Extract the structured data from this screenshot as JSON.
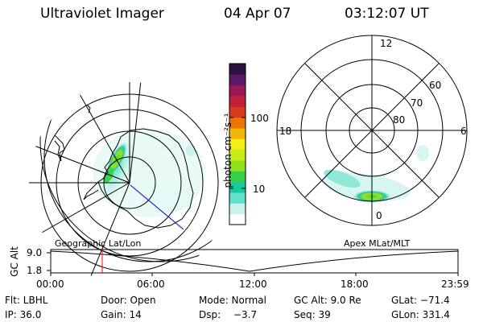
{
  "header": {
    "instrument": "Ultraviolet Imager",
    "date": "04 Apr 07",
    "time": "03:12:07 UT"
  },
  "left_map": {
    "caption": "Geographic Lat/Lon"
  },
  "right_map": {
    "caption": "Apex MLat/MLT",
    "mlt_labels": [
      "12",
      "18",
      "6",
      "0"
    ],
    "lat_labels": [
      "60",
      "70",
      "80"
    ]
  },
  "colorbar": {
    "unit_label": "photon cm⁻²s⁻¹",
    "tick_labels": [
      "100",
      "10"
    ],
    "colors": [
      "#ffffff",
      "#c9f3ec",
      "#63e0cc",
      "#1cc89d",
      "#35d24a",
      "#8fe21a",
      "#c7ec18",
      "#f2ee16",
      "#f2b60c",
      "#e8760b",
      "#d93a1c",
      "#c41e3a",
      "#9b1858",
      "#5c1a66",
      "#2b1240"
    ]
  },
  "altitude_plot": {
    "ylabel": "GC Alt",
    "y_ticks": [
      "9.0",
      "1.8"
    ],
    "x_ticks": [
      "00:00",
      "06:00",
      "12:00",
      "18:00",
      "23:59"
    ],
    "current_time_color": "#ff0000"
  },
  "info": {
    "row1": [
      "Flt: LBHL",
      "Door: Open",
      "Mode: Normal",
      "GC Alt: 9.0 Re",
      "GLat: −71.4"
    ],
    "row2": [
      "IP: 36.0",
      "Gain: 14",
      "Dsp:",
      "−3.7",
      "Seq: 39",
      "GLon: 331.4"
    ]
  }
}
